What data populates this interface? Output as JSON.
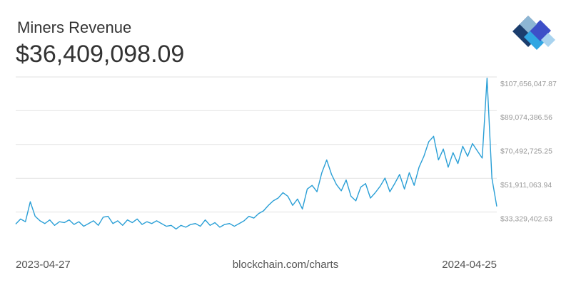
{
  "chart_data": {
    "type": "line",
    "title": "Miners Revenue",
    "subtitle": "$36,409,098.09",
    "source": "blockchain.com/charts",
    "categories": [
      "2023-04-27",
      null,
      null,
      null,
      null,
      null,
      null,
      null,
      null,
      null,
      null,
      null,
      null,
      null,
      null,
      null,
      null,
      null,
      null,
      null,
      null,
      null,
      null,
      null,
      null,
      null,
      null,
      null,
      null,
      null,
      null,
      null,
      null,
      null,
      null,
      null,
      null,
      null,
      null,
      null,
      null,
      null,
      null,
      null,
      null,
      null,
      null,
      null,
      null,
      null,
      null,
      null,
      null,
      null,
      null,
      null,
      null,
      null,
      null,
      null,
      null,
      null,
      null,
      null,
      null,
      null,
      null,
      null,
      null,
      null,
      null,
      null,
      null,
      null,
      null,
      null,
      null,
      null,
      null,
      null,
      null,
      null,
      null,
      null,
      null,
      null,
      null,
      null,
      null,
      null,
      null,
      null,
      null,
      null,
      null,
      null,
      null,
      null,
      null,
      "2024-04-25"
    ],
    "series": [
      {
        "color": "#2a9fd6",
        "values": [
          26700000,
          29500000,
          28000000,
          39000000,
          31000000,
          28500000,
          27000000,
          29000000,
          26000000,
          28000000,
          27500000,
          29000000,
          26500000,
          28000000,
          25500000,
          27000000,
          28500000,
          26000000,
          30500000,
          31000000,
          27000000,
          28500000,
          26000000,
          29000000,
          27500000,
          29500000,
          26500000,
          28000000,
          27000000,
          28500000,
          27000000,
          25500000,
          26000000,
          24000000,
          26000000,
          25000000,
          26500000,
          27000000,
          25500000,
          29000000,
          26000000,
          27500000,
          25000000,
          26500000,
          27000000,
          25500000,
          27000000,
          28500000,
          31000000,
          30000000,
          32500000,
          34000000,
          37000000,
          39500000,
          41000000,
          44000000,
          42000000,
          37000000,
          40500000,
          35000000,
          46000000,
          48000000,
          44500000,
          55000000,
          62000000,
          54000000,
          48500000,
          45000000,
          51000000,
          42000000,
          39500000,
          47000000,
          49000000,
          41000000,
          44000000,
          47500000,
          52000000,
          44500000,
          49000000,
          54000000,
          46000000,
          55000000,
          48000000,
          58000000,
          64000000,
          72000000,
          75000000,
          62000000,
          68000000,
          58000000,
          66000000,
          60000000,
          69500000,
          64000000,
          71000000,
          67000000,
          63000000,
          107000000,
          52000000,
          36409098.09
        ]
      }
    ],
    "ylim": [
      14747741.32,
      107656047.87
    ],
    "yticks": [
      {
        "value": 33329402.63,
        "label": "$33,329,402.63"
      },
      {
        "value": 51911063.94,
        "label": "$51,911,063.94"
      },
      {
        "value": 70492725.25,
        "label": "$70,492,725.25"
      },
      {
        "value": 89074386.56,
        "label": "$89,074,386.56"
      },
      {
        "value": 107656047.87,
        "label": "$107,656,047.87"
      }
    ],
    "grid": true
  }
}
